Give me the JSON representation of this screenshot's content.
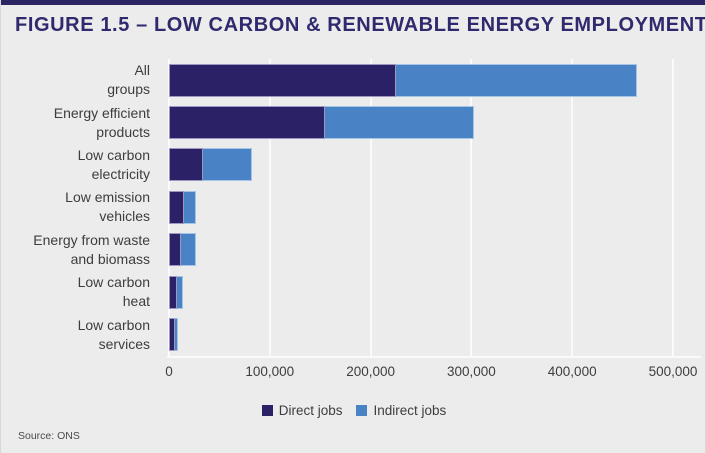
{
  "figure": {
    "title": "FIGURE 1.5 – LOW CARBON & RENEWABLE ENERGY EMPLOYMENT",
    "source": "Source: ONS"
  },
  "legend": {
    "direct_label": "Direct jobs",
    "indirect_label": "Indirect jobs"
  },
  "colors": {
    "background": "#ececec",
    "top_border": "#2b2564",
    "title": "#2e2a6d",
    "direct": "#2a2167",
    "indirect": "#4a83c5",
    "gridline": "#fafafa"
  },
  "chart_data": {
    "type": "bar",
    "orientation": "horizontal",
    "stacked": true,
    "title": "FIGURE 1.5 – LOW CARBON & RENEWABLE ENERGY EMPLOYMENT",
    "xlabel": "",
    "ylabel": "",
    "xlim": [
      0,
      500000
    ],
    "grid": "vertical",
    "legend_position": "bottom",
    "categories": [
      "All groups",
      "Energy efficient products",
      "Low carbon electricity",
      "Low emission vehicles",
      "Energy from waste and biomass",
      "Low carbon heat",
      "Low carbon services"
    ],
    "category_label_lines": [
      [
        "All",
        "groups"
      ],
      [
        "Energy efficient",
        "products"
      ],
      [
        "Low carbon",
        "electricity"
      ],
      [
        "Low emission",
        "vehicles"
      ],
      [
        "Energy from waste",
        "and biomass"
      ],
      [
        "Low carbon",
        "heat"
      ],
      [
        "Low carbon",
        "services"
      ]
    ],
    "series": [
      {
        "name": "Direct jobs",
        "color": "#2a2167",
        "values": [
          225000,
          155000,
          34000,
          15000,
          11500,
          8000,
          5500
        ]
      },
      {
        "name": "Indirect jobs",
        "color": "#4a83c5",
        "values": [
          239000,
          148000,
          48000,
          12000,
          15000,
          6000,
          3500
        ]
      }
    ],
    "totals": [
      464000,
      303000,
      82000,
      27000,
      26500,
      14000,
      9000
    ],
    "x_ticks": [
      {
        "label": "0",
        "value": 0
      },
      {
        "label": "100,000",
        "value": 100000
      },
      {
        "label": "200,000",
        "value": 200000
      },
      {
        "label": "300,000",
        "value": 300000
      },
      {
        "label": "400,000",
        "value": 400000
      },
      {
        "label": "500,000",
        "value": 500000
      }
    ]
  }
}
